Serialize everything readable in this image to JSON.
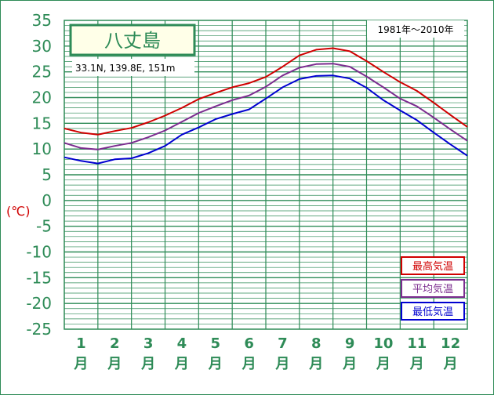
{
  "chart_data": {
    "type": "line",
    "title": "八丈島",
    "location": "33.1N,  139.8E,  151m",
    "period": "1981年～2010年",
    "ylabel": "(℃)",
    "ylim": [
      -25,
      35
    ],
    "yticks": [
      "35",
      "30",
      "25",
      "20",
      "15",
      "10",
      "5",
      "0",
      "-5",
      "-10",
      "-15",
      "-20",
      "-25"
    ],
    "categories": [
      "1月",
      "2月",
      "3月",
      "4月",
      "5月",
      "6月",
      "7月",
      "8月",
      "9月",
      "10月",
      "11月",
      "12月"
    ],
    "month_numbers": [
      "1",
      "2",
      "3",
      "4",
      "5",
      "6",
      "7",
      "8",
      "9",
      "10",
      "11",
      "12"
    ],
    "month_unit": "月",
    "x": [
      0.0,
      0.5,
      1.0,
      1.5,
      2.0,
      2.5,
      3.0,
      3.5,
      4.0,
      4.5,
      5.0,
      5.5,
      6.0,
      6.5,
      7.0,
      7.5,
      8.0,
      8.5,
      9.0,
      9.5,
      10.0,
      10.5,
      11.0,
      11.5,
      12.0
    ],
    "series": [
      {
        "name": "最高気温",
        "color": "#d00000",
        "values": [
          14.0,
          13.2,
          12.8,
          13.5,
          14.1,
          15.2,
          16.5,
          18.0,
          19.7,
          20.9,
          22.0,
          22.8,
          24.0,
          26.0,
          28.2,
          29.3,
          29.6,
          29.0,
          27.1,
          25.0,
          23.0,
          21.3,
          19.0,
          16.6,
          14.3
        ]
      },
      {
        "name": "平均気温",
        "color": "#7b2c8f",
        "values": [
          11.2,
          10.2,
          9.9,
          10.6,
          11.2,
          12.3,
          13.6,
          15.3,
          17.0,
          18.3,
          19.5,
          20.4,
          22.1,
          24.3,
          25.8,
          26.5,
          26.6,
          26.0,
          24.1,
          22.0,
          19.8,
          18.3,
          16.1,
          13.8,
          11.6
        ]
      },
      {
        "name": "最低気温",
        "color": "#0000d0",
        "values": [
          8.4,
          7.7,
          7.2,
          8.0,
          8.2,
          9.2,
          10.6,
          12.8,
          14.2,
          15.8,
          16.8,
          17.7,
          19.8,
          22.0,
          23.6,
          24.2,
          24.3,
          23.7,
          21.9,
          19.5,
          17.5,
          15.6,
          13.2,
          10.9,
          8.7
        ]
      }
    ],
    "grid": true,
    "legend_position": "bottom-right"
  }
}
